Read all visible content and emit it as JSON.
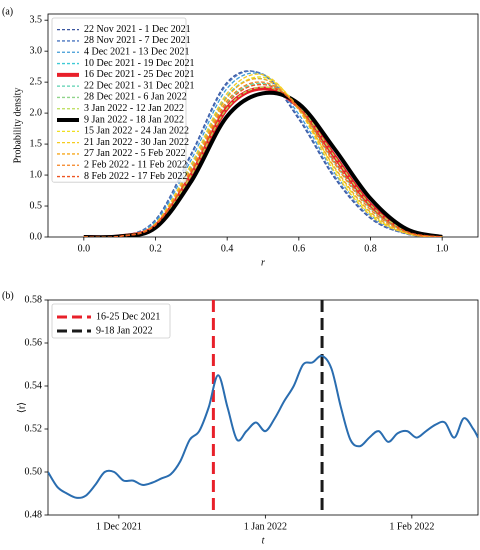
{
  "chart_data": [
    {
      "type": "line",
      "panel_label": "(a)",
      "xlabel": "r",
      "ylabel": "Probability density",
      "x": [
        0,
        0.1,
        0.2,
        0.3,
        0.4,
        0.5,
        0.6,
        0.7,
        0.8,
        0.9,
        1.0
      ],
      "xlim": [
        -0.1,
        1.1
      ],
      "xticks": [
        {
          "value": 0,
          "label": "0.0"
        },
        0.2,
        0.4,
        0.6,
        0.8,
        {
          "value": 1,
          "label": "1.0"
        }
      ],
      "ylim": [
        0,
        3.6
      ],
      "yticks": [
        {
          "value": 0,
          "label": "0.0"
        },
        0.5,
        {
          "value": 1,
          "label": "1.0"
        },
        1.5,
        {
          "value": 2,
          "label": "2.0"
        },
        2.5,
        {
          "value": 3,
          "label": "3.0"
        },
        3.5
      ],
      "legend": "upper left",
      "series": [
        {
          "name": "22 Nov 2021 - 1 Dec 2021",
          "color": "#3a56a0",
          "linestyle": "dashed",
          "linewidth": 1.3,
          "values": [
            0,
            0.01,
            0.28,
            1.35,
            2.5,
            2.62,
            1.9,
            0.95,
            0.3,
            0.05,
            0
          ]
        },
        {
          "name": "28 Nov 2021 - 7 Dec 2021",
          "color": "#4a76c0",
          "linestyle": "dashed",
          "linewidth": 1.3,
          "values": [
            0,
            0.01,
            0.27,
            1.32,
            2.47,
            2.63,
            1.93,
            0.98,
            0.32,
            0.05,
            0
          ]
        },
        {
          "name": "4 Dec 2021 - 13 Dec 2021",
          "color": "#3f9bd6",
          "linestyle": "dashed",
          "linewidth": 1.3,
          "values": [
            0,
            0.01,
            0.25,
            1.25,
            2.4,
            2.62,
            1.98,
            1.03,
            0.35,
            0.06,
            0
          ]
        },
        {
          "name": "10 Dec 2021 - 19 Dec 2021",
          "color": "#3fcad6",
          "linestyle": "dashed",
          "linewidth": 1.3,
          "values": [
            0,
            0.01,
            0.22,
            1.15,
            2.28,
            2.55,
            2.05,
            1.12,
            0.4,
            0.07,
            0
          ]
        },
        {
          "name": "16 Dec 2021 - 25 Dec 2021",
          "color": "#e8202a",
          "linestyle": "solid",
          "linewidth": 4,
          "values": [
            0,
            0.01,
            0.18,
            1.0,
            2.08,
            2.4,
            2.1,
            1.3,
            0.52,
            0.1,
            0
          ]
        },
        {
          "name": "22 Dec 2021 - 31 Dec 2021",
          "color": "#5ad1b0",
          "linestyle": "dashed",
          "linewidth": 1.3,
          "values": [
            0,
            0.01,
            0.2,
            1.08,
            2.18,
            2.48,
            2.08,
            1.2,
            0.46,
            0.08,
            0
          ]
        },
        {
          "name": "28 Dec 2021 - 6 Jan 2022",
          "color": "#8fd48a",
          "linestyle": "dashed",
          "linewidth": 1.3,
          "values": [
            0,
            0.01,
            0.2,
            1.06,
            2.16,
            2.47,
            2.09,
            1.22,
            0.47,
            0.08,
            0
          ]
        },
        {
          "name": "3 Jan 2022 - 12 Jan 2022",
          "color": "#b9dc55",
          "linestyle": "dashed",
          "linewidth": 1.3,
          "values": [
            0,
            0.01,
            0.18,
            1.0,
            2.08,
            2.42,
            2.12,
            1.3,
            0.52,
            0.1,
            0
          ]
        },
        {
          "name": "9 Jan 2022 - 18 Jan 2022",
          "color": "#000000",
          "linestyle": "solid",
          "linewidth": 4,
          "values": [
            0,
            0.01,
            0.15,
            0.9,
            1.95,
            2.32,
            2.15,
            1.42,
            0.62,
            0.13,
            0
          ]
        },
        {
          "name": "15 Jan 2022 - 24 Jan 2022",
          "color": "#f0e020",
          "linestyle": "dashed",
          "linewidth": 1.3,
          "values": [
            0,
            0.01,
            0.2,
            1.1,
            2.25,
            2.58,
            2.08,
            1.1,
            0.38,
            0.06,
            0
          ]
        },
        {
          "name": "21 Jan 2022 - 30 Jan 2022",
          "color": "#f5cc20",
          "linestyle": "dashed",
          "linewidth": 1.3,
          "values": [
            0,
            0.01,
            0.22,
            1.18,
            2.32,
            2.62,
            2.05,
            1.05,
            0.35,
            0.06,
            0
          ]
        },
        {
          "name": "27 Jan 2022 - 5 Feb 2022",
          "color": "#f7a81f",
          "linestyle": "dashed",
          "linewidth": 1.3,
          "values": [
            0,
            0.01,
            0.21,
            1.12,
            2.26,
            2.55,
            2.06,
            1.12,
            0.4,
            0.07,
            0
          ]
        },
        {
          "name": "2 Feb 2022 - 11 Feb 2022",
          "color": "#f58220",
          "linestyle": "dashed",
          "linewidth": 1.3,
          "values": [
            0,
            0.01,
            0.2,
            1.08,
            2.2,
            2.5,
            2.08,
            1.18,
            0.44,
            0.08,
            0
          ]
        },
        {
          "name": "8 Feb 2022 - 17 Feb 2022",
          "color": "#ee5522",
          "linestyle": "dashed",
          "linewidth": 1.3,
          "values": [
            0,
            0.01,
            0.19,
            1.05,
            2.15,
            2.46,
            2.09,
            1.22,
            0.48,
            0.09,
            0
          ]
        }
      ]
    },
    {
      "type": "line",
      "panel_label": "(b)",
      "xlabel": "t",
      "ylabel": "⟨r⟩",
      "x": [
        "2021-11-16",
        "2021-11-18",
        "2021-11-20",
        "2021-11-22",
        "2021-11-24",
        "2021-11-26",
        "2021-11-28",
        "2021-11-30",
        "2021-12-02",
        "2021-12-04",
        "2021-12-06",
        "2021-12-08",
        "2021-12-10",
        "2021-12-12",
        "2021-12-14",
        "2021-12-16",
        "2021-12-18",
        "2021-12-20",
        "2021-12-22",
        "2021-12-24",
        "2021-12-26",
        "2021-12-28",
        "2021-12-30",
        "2022-01-01",
        "2022-01-03",
        "2022-01-05",
        "2022-01-07",
        "2022-01-09",
        "2022-01-11",
        "2022-01-13",
        "2022-01-15",
        "2022-01-17",
        "2022-01-19",
        "2022-01-21",
        "2022-01-23",
        "2022-01-25",
        "2022-01-27",
        "2022-01-29",
        "2022-01-31",
        "2022-02-02",
        "2022-02-04",
        "2022-02-06",
        "2022-02-08",
        "2022-02-10",
        "2022-02-12",
        "2022-02-14",
        "2022-02-15"
      ],
      "xlim": [
        "2021-11-16",
        "2022-02-15"
      ],
      "xticks": [
        {
          "value": "2021-12-01",
          "label": "1 Dec 2021"
        },
        {
          "value": "2022-01-01",
          "label": "1 Jan 2022"
        },
        {
          "value": "2022-02-01",
          "label": "1 Feb 2022"
        }
      ],
      "ylim": [
        0.48,
        0.58
      ],
      "yticks": [
        0.48,
        {
          "value": 0.5,
          "label": "0.50"
        },
        0.52,
        0.54,
        0.56,
        0.58
      ],
      "legend": "upper left",
      "series": [
        {
          "color": "#2a6db0",
          "linestyle": "solid",
          "linewidth": 2,
          "values": [
            0.5,
            0.493,
            0.49,
            0.488,
            0.489,
            0.494,
            0.5,
            0.5,
            0.496,
            0.496,
            0.494,
            0.495,
            0.497,
            0.499,
            0.505,
            0.515,
            0.519,
            0.53,
            0.545,
            0.53,
            0.515,
            0.519,
            0.523,
            0.519,
            0.525,
            0.533,
            0.54,
            0.55,
            0.551,
            0.554,
            0.548,
            0.53,
            0.515,
            0.512,
            0.516,
            0.519,
            0.514,
            0.518,
            0.519,
            0.516,
            0.519,
            0.522,
            0.523,
            0.516,
            0.525,
            0.52,
            0.516
          ]
        }
      ],
      "vlines": [
        {
          "name": "16-25 Dec 2021",
          "color": "#e8202a",
          "x": "2021-12-21"
        },
        {
          "name": "9-18 Jan 2022",
          "color": "#1a1a1a",
          "x": "2022-01-13"
        }
      ]
    }
  ]
}
